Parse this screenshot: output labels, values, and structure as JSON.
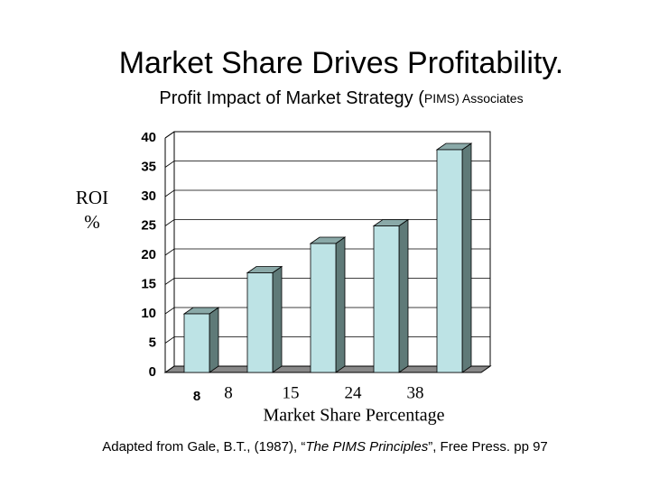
{
  "chart_data": {
    "type": "bar3d",
    "title": "Market Share Drives Profitability.",
    "subtitle_parts": [
      "Profit Impact of Market Strategy (",
      "PIMS) Associates"
    ],
    "ylabel_lines": [
      "ROI",
      "%"
    ],
    "xlabel": "Market Share Percentage",
    "categories": [
      "8",
      null,
      null,
      null,
      null
    ],
    "overlay_labels": [
      "8",
      "15",
      "24",
      "38"
    ],
    "values": [
      10,
      17,
      22,
      25,
      38
    ],
    "color": "#bde3e5",
    "ylim": [
      0,
      40
    ],
    "yticks": [
      0,
      5,
      10,
      15,
      20,
      25,
      30,
      35,
      40
    ],
    "grid": true,
    "source_parts": [
      "Adapted from Gale, B.T., (1987), “",
      "The PIMS Principles",
      "”, Free Press. pp 97"
    ]
  }
}
